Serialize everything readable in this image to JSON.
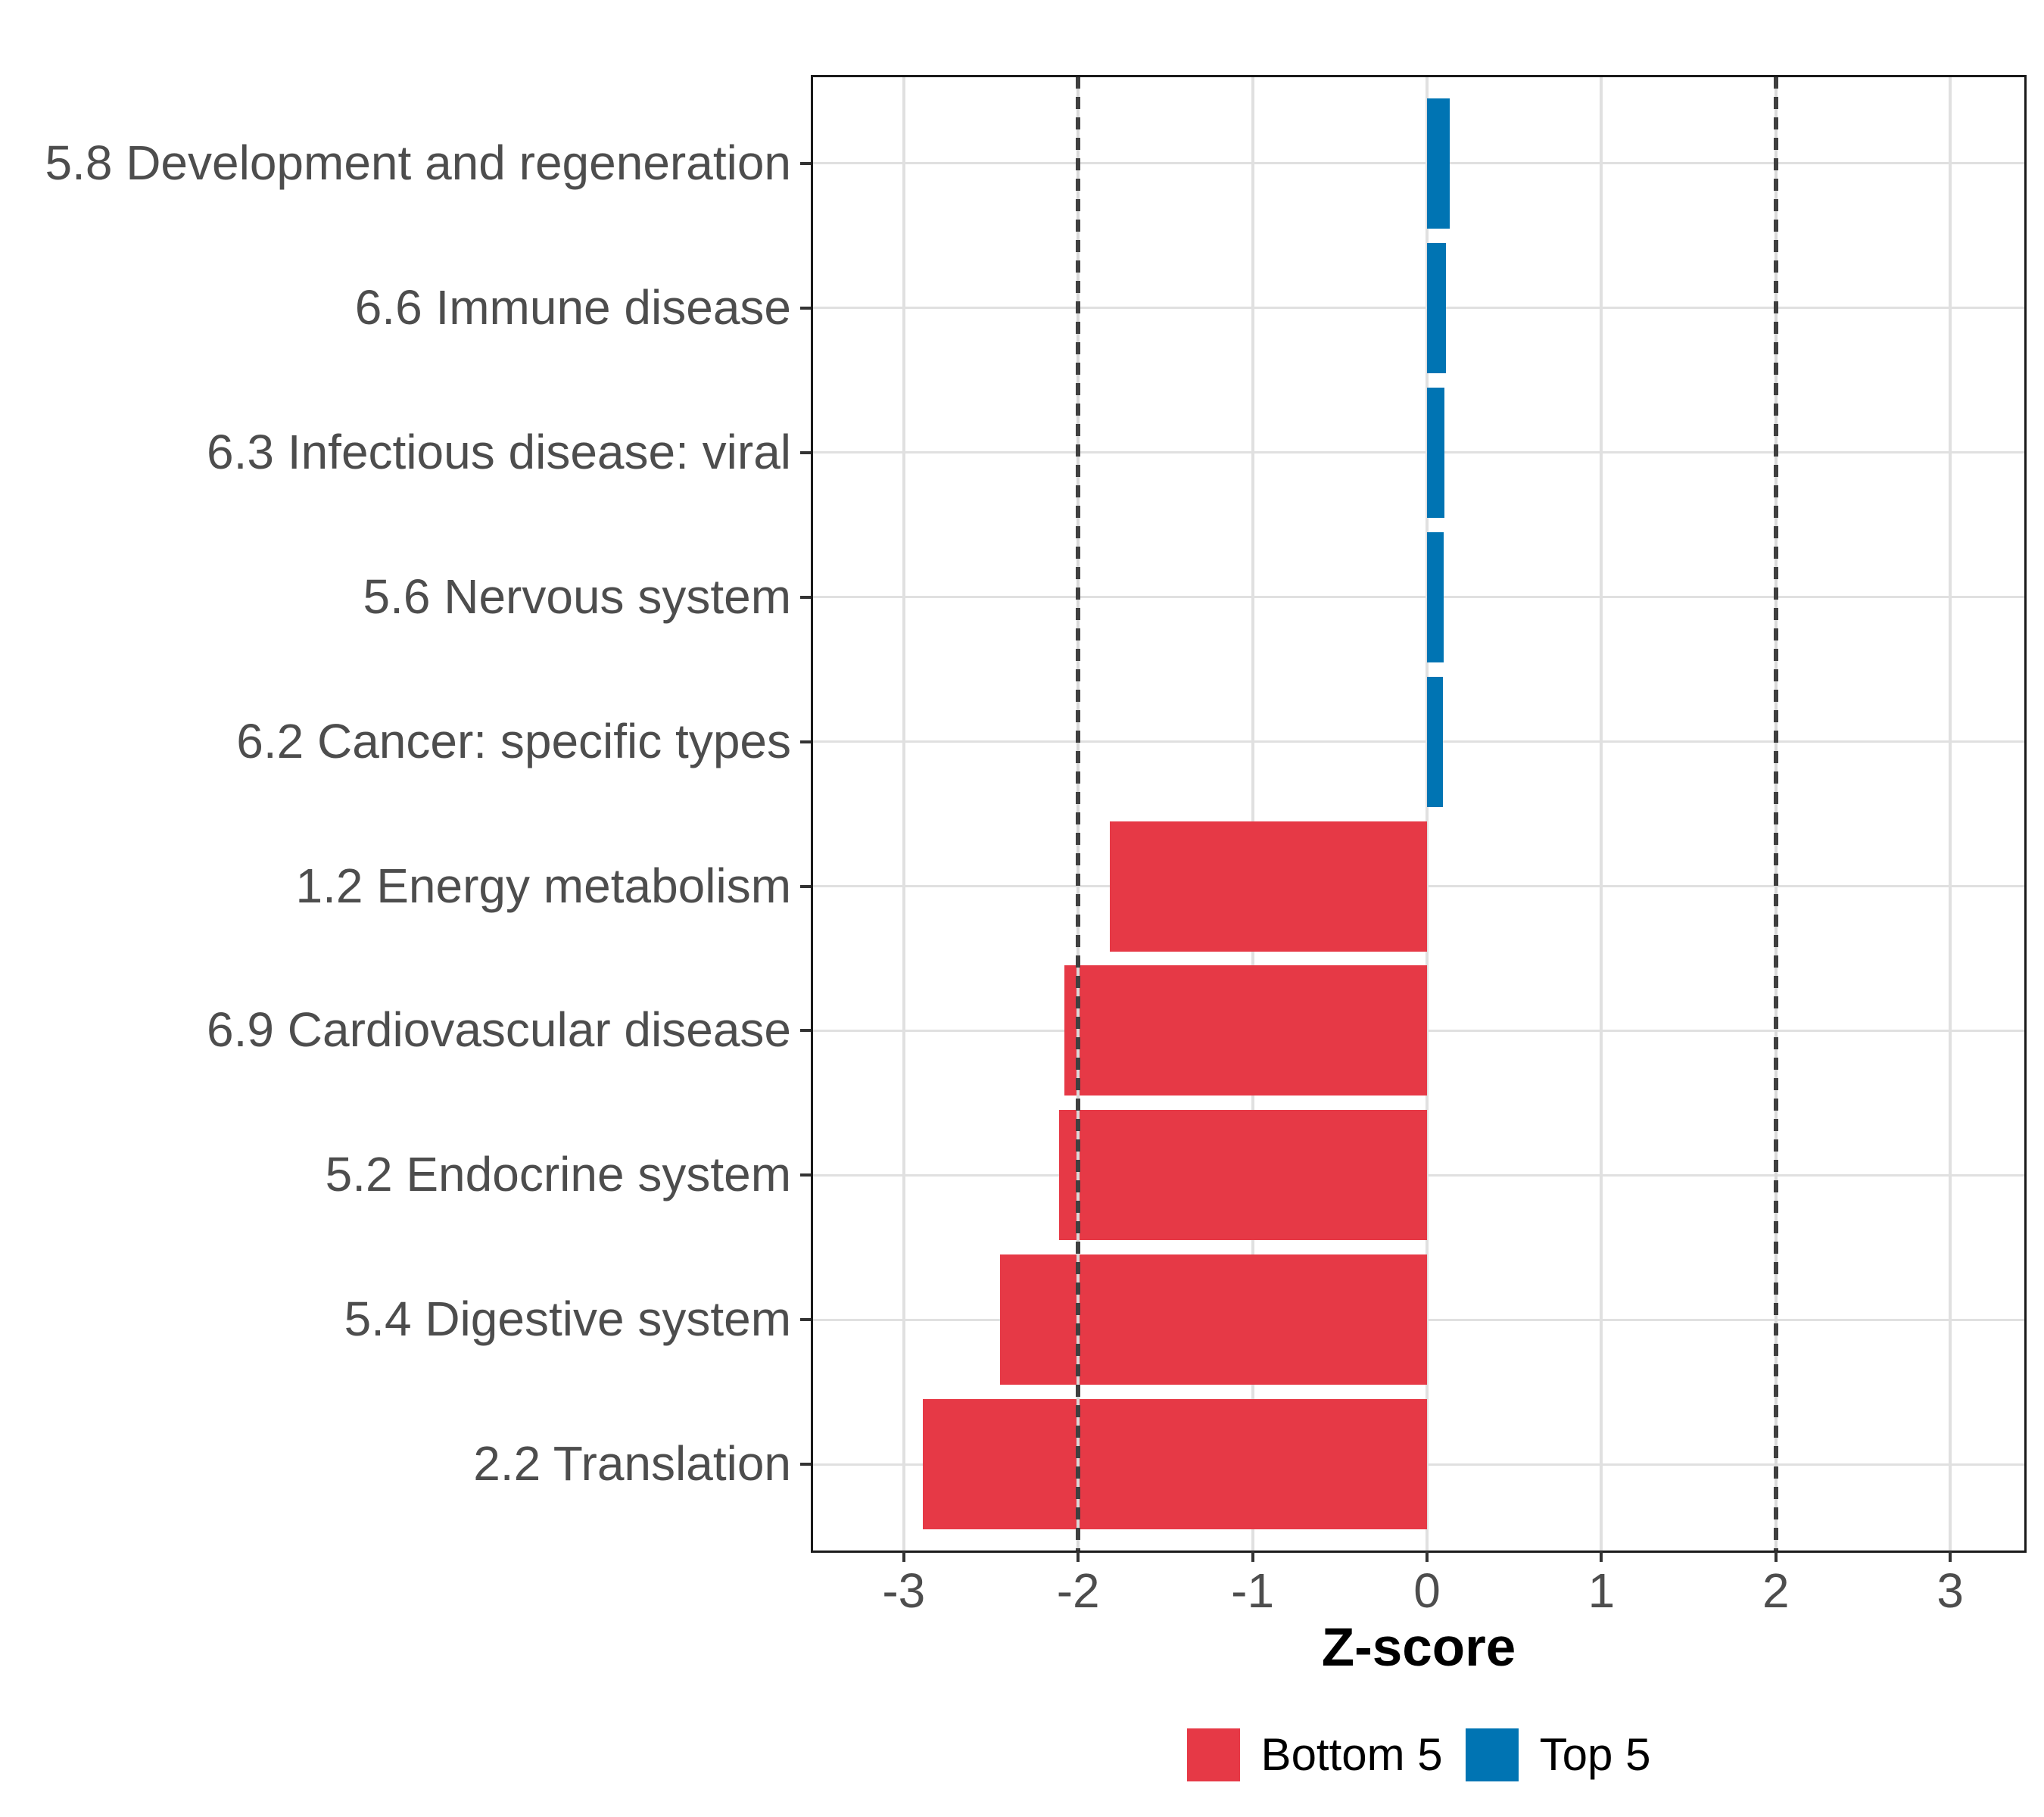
{
  "chart_data": {
    "type": "bar",
    "orientation": "horizontal",
    "title": "",
    "xlabel": "Z-score",
    "categories": [
      "5.8 Development and regeneration",
      "6.6 Immune disease",
      "6.3 Infectious disease: viral",
      "5.6 Nervous system",
      "6.2 Cancer: specific types",
      "1.2 Energy metabolism",
      "6.9 Cardiovascular disease",
      "5.2 Endocrine system",
      "5.4 Digestive system",
      "2.2 Translation"
    ],
    "values": [
      0.13,
      0.11,
      0.1,
      0.095,
      0.09,
      -1.82,
      -2.08,
      -2.11,
      -2.45,
      -2.89
    ],
    "groups": [
      "Top 5",
      "Top 5",
      "Top 5",
      "Top 5",
      "Top 5",
      "Bottom 5",
      "Bottom 5",
      "Bottom 5",
      "Bottom 5",
      "Bottom 5"
    ],
    "x_ticks": [
      -3,
      -2,
      -1,
      0,
      1,
      2,
      3
    ],
    "x_range": [
      -3.52,
      3.43
    ],
    "reference_lines_dashed": [
      -2,
      2
    ],
    "grid": "on",
    "legend_position": "bottom",
    "legend": [
      {
        "label": "Bottom 5",
        "color": "#E63946"
      },
      {
        "label": "Top 5",
        "color": "#0074B3"
      }
    ],
    "colors": {
      "Bottom 5": "#E63946",
      "Top 5": "#0074B3",
      "gridline": "#E0E0E0",
      "dashed_line": "#3F3F3F",
      "axis_text": "#4D4D4D",
      "panel_border": "#1A1A1A"
    }
  }
}
